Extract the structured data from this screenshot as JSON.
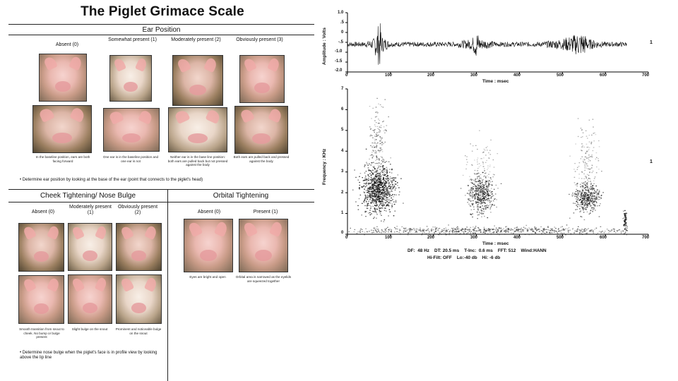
{
  "left_panel": {
    "title": "The Piglet Grimace Scale",
    "ear": {
      "heading": "Ear Position",
      "columns": [
        "Absent (0)",
        "Somewhat present (1)",
        "Moderately present (2)",
        "Obviously present (3)"
      ],
      "captions": [
        "In the baseline position, ears are both facing forward",
        "One ear is in the baseline position and one ear is not",
        "Neither ear is in the base line position: both ears are pulled back but not pressed against the body",
        "Both ears are pulled back and pressed against the body"
      ],
      "note": "• Determine ear position by looking at the base of the ear (point that connects to the piglet's head)"
    },
    "cheek": {
      "heading": "Cheek Tightening/ Nose Bulge",
      "columns": [
        "Absent (0)",
        "Moderately present (1)",
        "Obviously present (2)"
      ],
      "captions": [
        "Smooth transition from snout to cheek. No bump or bulge present",
        "Slight bulge on the snout",
        "Prominent and noticeable bulge on the snout"
      ],
      "note": "• Determine nose bulge when the piglet's face is in profile view by looking above the lip line"
    },
    "orbital": {
      "heading": "Orbital Tightening",
      "columns": [
        "Absent (0)",
        "Present (1)"
      ],
      "captions": [
        "Eyes are bright and open",
        "Orbital area is narrowed as the eyelids are squeezed together"
      ]
    }
  },
  "waveform": {
    "ylabel": "Amplitude : Volts",
    "xlabel": "Time : msec",
    "yticks": [
      "1.0",
      ".5",
      "0",
      "-.5",
      "-1.0",
      "-1.5",
      "-2.0"
    ],
    "xticks": [
      "0",
      "100",
      "200",
      "300",
      "400",
      "500",
      "600",
      "700"
    ],
    "channel": "1"
  },
  "spectrogram": {
    "ylabel": "Frequency : KHz",
    "xlabel": "Time : msec",
    "yticks": [
      "7",
      "6",
      "5",
      "4",
      "3",
      "2",
      "1",
      "0"
    ],
    "xticks": [
      "0",
      "100",
      "200",
      "300",
      "400",
      "500",
      "600",
      "700"
    ],
    "channel": "1",
    "params_line1": "DF:  48 Hz    DT: 20.5 ms    T-Inc:  0.6 ms    FFT: 512    Wind:HANN",
    "params_line2": "Hi-Filt: OFF    Lo:-40 db    Hi: -6 db"
  },
  "chart_data": [
    {
      "type": "line",
      "xlabel": "Time : msec",
      "ylabel": "Amplitude : Volts",
      "xlim": [
        0,
        700
      ],
      "ylim": [
        -2.0,
        1.0
      ],
      "series": [
        {
          "x": [
            0,
            40,
            60,
            70,
            75,
            80,
            100,
            150,
            200,
            250,
            290,
            300,
            310,
            350,
            400,
            450,
            500,
            540,
            550,
            560,
            600,
            650
          ],
          "y": [
            -0.6,
            -0.6,
            -0.5,
            -0.1,
            0.1,
            -0.4,
            -0.6,
            -0.6,
            -0.6,
            -0.6,
            -0.5,
            -0.2,
            -0.5,
            -0.6,
            -0.6,
            -0.6,
            -0.5,
            -0.3,
            -0.3,
            -0.5,
            -0.6,
            -0.6
          ]
        }
      ]
    },
    {
      "type": "heatmap",
      "xlabel": "Time : msec",
      "ylabel": "Frequency : KHz",
      "xlim": [
        0,
        700
      ],
      "ylim": [
        0,
        7
      ]
    }
  ]
}
